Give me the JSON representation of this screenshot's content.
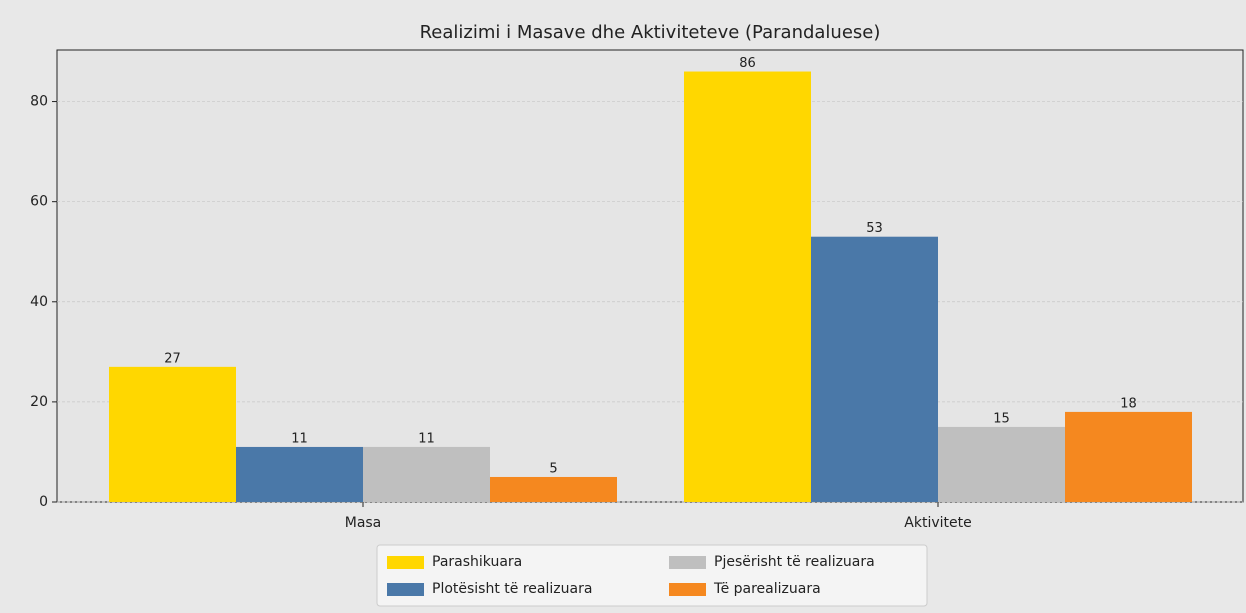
{
  "chart_data": {
    "type": "bar",
    "title": "Realizimi i Masave dhe Aktiviteteve (Parandaluese)",
    "categories": [
      "Masa",
      "Aktivitete"
    ],
    "series": [
      {
        "name": "Parashikuara",
        "color": "#ffd700",
        "values": [
          27,
          86
        ]
      },
      {
        "name": "Plotësisht të realizuara",
        "color": "#4a78a8",
        "values": [
          11,
          53
        ]
      },
      {
        "name": "Pjesërisht të realizuara",
        "color": "#bfbfbf",
        "values": [
          11,
          15
        ]
      },
      {
        "name": "Të parealizuara",
        "color": "#f5881f",
        "values": [
          5,
          18
        ]
      }
    ],
    "ylim": [
      0,
      90.3
    ],
    "yticks": [
      0,
      20,
      40,
      60,
      80
    ],
    "grid": true,
    "legend": "bottom"
  }
}
